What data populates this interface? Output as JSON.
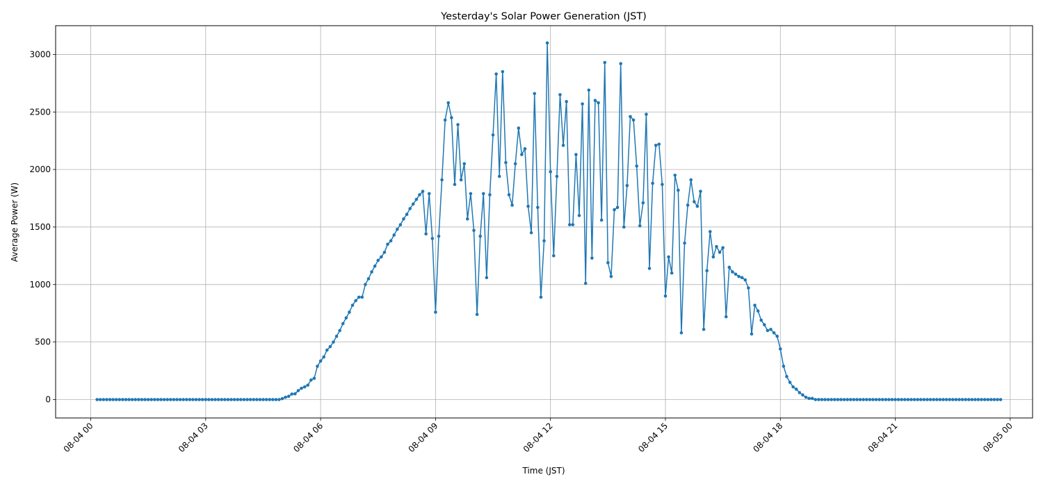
{
  "colors": {
    "series": "#1f77b4",
    "grid": "#b0b0b0",
    "axes": "#000000"
  },
  "chart_data": {
    "type": "line",
    "title": "Yesterday's Solar Power Generation (JST)",
    "xlabel": "Time (JST)",
    "ylabel": "Average Power (W)",
    "grid": true,
    "markers": true,
    "x_tick_labels": [
      "08-04 00",
      "08-04 03",
      "08-04 06",
      "08-04 09",
      "08-04 12",
      "08-04 15",
      "08-04 18",
      "08-04 21",
      "08-05 00"
    ],
    "x_tick_times": [
      "2024-08-04 00:00",
      "2024-08-04 03:00",
      "2024-08-04 06:00",
      "2024-08-04 09:00",
      "2024-08-04 12:00",
      "2024-08-04 15:00",
      "2024-08-04 18:00",
      "2024-08-04 21:00",
      "2024-08-05 00:00"
    ],
    "y_ticks": [
      0,
      500,
      1000,
      1500,
      2000,
      2500,
      3000
    ],
    "xlim": [
      "2024-08-03 23:05",
      "2024-08-05 00:35"
    ],
    "ylim": [
      -160,
      3250
    ],
    "x_start": "2024-08-04 00:10",
    "x_step_minutes": 5,
    "series": [
      {
        "values": [
          0,
          0,
          0,
          0,
          0,
          0,
          0,
          0,
          0,
          0,
          0,
          0,
          0,
          0,
          0,
          0,
          0,
          0,
          0,
          0,
          0,
          0,
          0,
          0,
          0,
          0,
          0,
          0,
          0,
          0,
          0,
          0,
          0,
          0,
          0,
          0,
          0,
          0,
          0,
          0,
          0,
          0,
          0,
          0,
          0,
          0,
          0,
          0,
          0,
          0,
          0,
          0,
          0,
          0,
          0,
          0,
          0,
          0,
          8,
          20,
          28,
          48,
          50,
          78,
          98,
          110,
          125,
          170,
          185,
          290,
          335,
          370,
          430,
          460,
          500,
          550,
          600,
          660,
          710,
          760,
          820,
          860,
          890,
          890,
          1000,
          1050,
          1110,
          1160,
          1210,
          1240,
          1280,
          1350,
          1380,
          1430,
          1480,
          1520,
          1570,
          1610,
          1660,
          1700,
          1740,
          1780,
          1810,
          1440,
          1790,
          1400,
          760,
          1420,
          1910,
          2430,
          2580,
          2450,
          1870,
          2390,
          1910,
          2050,
          1570,
          1790,
          1470,
          740,
          1420,
          1790,
          1060,
          1780,
          2300,
          2830,
          1940,
          2850,
          2060,
          1780,
          1690,
          2050,
          2360,
          2130,
          2180,
          1680,
          1450,
          2660,
          1670,
          890,
          1380,
          3100,
          1980,
          1250,
          1940,
          2650,
          2210,
          2590,
          1520,
          1520,
          2130,
          1600,
          2570,
          1010,
          2690,
          1230,
          2600,
          2580,
          1560,
          2930,
          1190,
          1070,
          1650,
          1670,
          2920,
          1500,
          1860,
          2460,
          2430,
          2030,
          1510,
          1710,
          2480,
          1140,
          1880,
          2210,
          2220,
          1870,
          900,
          1240,
          1100,
          1950,
          1820,
          580,
          1360,
          1690,
          1910,
          1720,
          1680,
          1810,
          610,
          1120,
          1460,
          1240,
          1330,
          1280,
          1320,
          720,
          1150,
          1110,
          1090,
          1070,
          1060,
          1040,
          970,
          570,
          820,
          770,
          690,
          650,
          600,
          610,
          580,
          550,
          440,
          290,
          200,
          150,
          110,
          90,
          60,
          40,
          20,
          10,
          10,
          0,
          0,
          0,
          0,
          0,
          0,
          0,
          0,
          0,
          0,
          0,
          0,
          0,
          0,
          0,
          0,
          0,
          0,
          0,
          0,
          0,
          0,
          0,
          0,
          0,
          0,
          0,
          0,
          0,
          0,
          0,
          0,
          0,
          0,
          0,
          0,
          0,
          0,
          0,
          0,
          0,
          0,
          0,
          0,
          0,
          0,
          0,
          0,
          0,
          0,
          0,
          0,
          0,
          0,
          0,
          0,
          0,
          0,
          0
        ]
      }
    ]
  }
}
